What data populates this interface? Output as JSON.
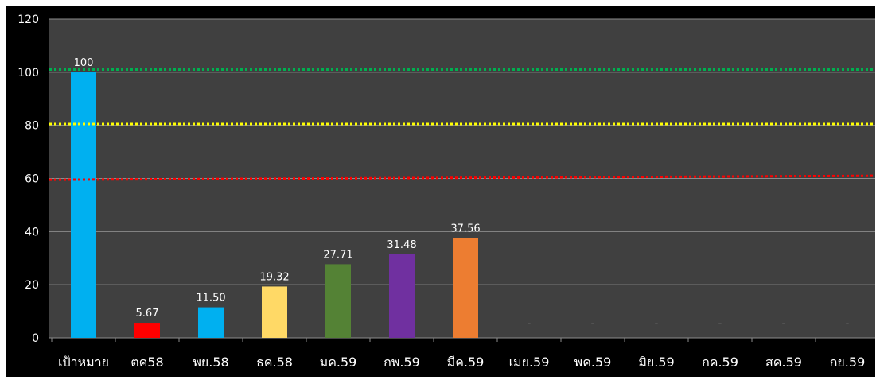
{
  "chart_data": {
    "type": "bar",
    "categories": [
      "เป้าหมาย",
      "ตค58",
      "พย.58",
      "ธค.58",
      "มค.59",
      "กพ.59",
      "มีค.59",
      "เมย.59",
      "พค.59",
      "มิย.59",
      "กค.59",
      "สค.59",
      "กย.59"
    ],
    "values": [
      100,
      5.67,
      11.5,
      19.32,
      27.71,
      31.48,
      37.56,
      null,
      null,
      null,
      null,
      null,
      null
    ],
    "data_labels": [
      "100",
      "5.67",
      "11.50",
      "19.32",
      "27.71",
      "31.48",
      "37.56",
      "-",
      "-",
      "-",
      "-",
      "-",
      "-"
    ],
    "bar_colors": [
      "#00b0f0",
      "#ff0000",
      "#00b0f0",
      "#ffd966",
      "#548235",
      "#7030a0",
      "#ed7d31",
      "#00b0f0",
      "#00b0f0",
      "#00b0f0",
      "#00b0f0",
      "#00b0f0",
      "#00b0f0"
    ],
    "yticks": [
      0,
      20,
      40,
      60,
      80,
      100,
      120
    ],
    "ylim": [
      0,
      120
    ],
    "grid": true,
    "reference_lines": [
      {
        "value": 101,
        "color": "#00b050"
      },
      {
        "value": 80.5,
        "color": "#ffff00"
      },
      {
        "value": 59.5,
        "value_end": 61,
        "color": "#ff0000"
      }
    ],
    "title": "",
    "xlabel": "",
    "ylabel": ""
  },
  "colors": {
    "background": "#000000",
    "plot_area": "#404040",
    "grid": "#8c8c8c",
    "text": "#ffffff"
  }
}
